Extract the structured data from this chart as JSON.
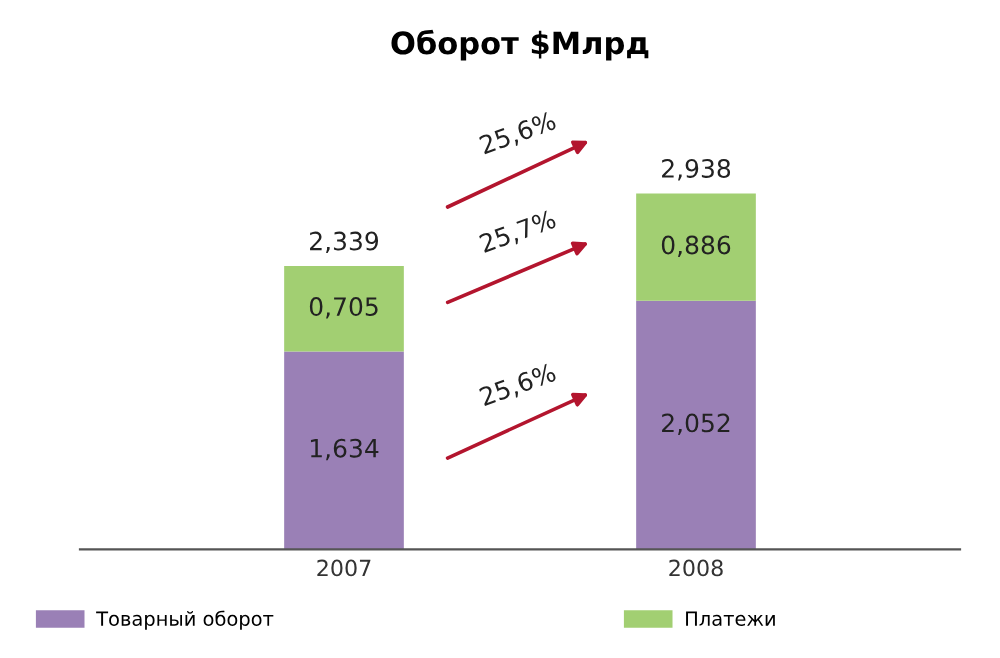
{
  "chart_data": {
    "type": "bar",
    "title": "Оборот $Млрд",
    "stacked": true,
    "categories": [
      "2007",
      "2008"
    ],
    "series": [
      {
        "name": "Товарный оборот",
        "color": "#9a80b6",
        "values": [
          1.634,
          2.052
        ],
        "value_labels": [
          "1,634",
          "2,052"
        ]
      },
      {
        "name": "Платежи",
        "color": "#a2cf72",
        "values": [
          0.705,
          0.886
        ],
        "value_labels": [
          "0,705",
          "0,886"
        ]
      }
    ],
    "totals": [
      "2,339",
      "2,938"
    ],
    "annotations": [
      "25,6%",
      "25,7%",
      "25,6%"
    ],
    "legend": "bottom",
    "grid": false
  }
}
